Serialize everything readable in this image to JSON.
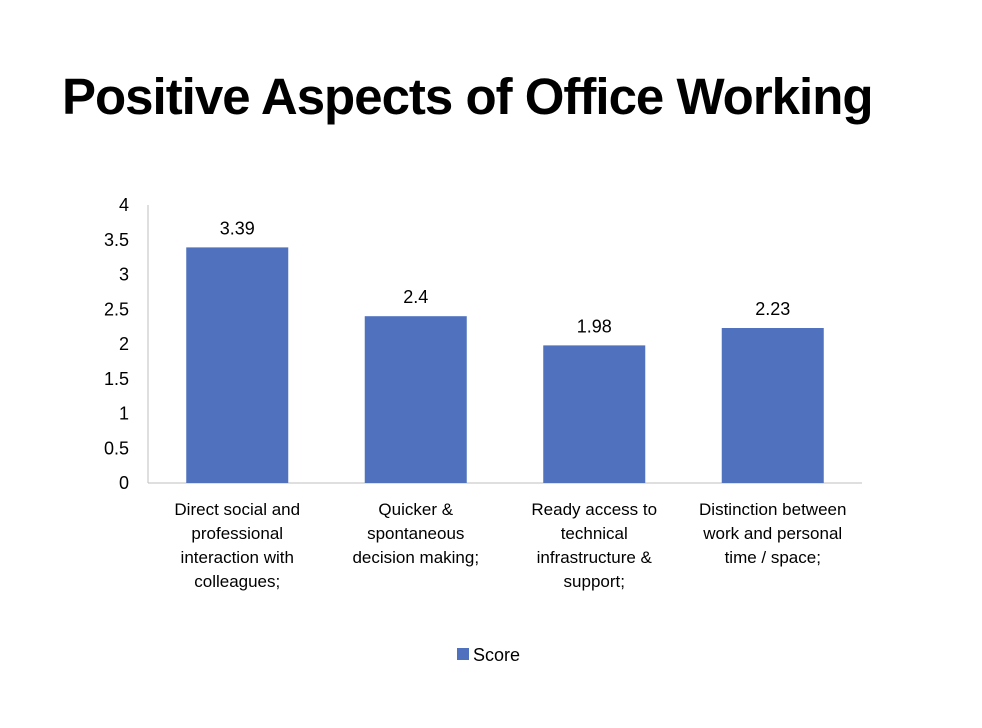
{
  "slide": {
    "title": "Positive Aspects of Office Working"
  },
  "chart_data": {
    "type": "bar",
    "title": "",
    "xlabel": "",
    "ylabel": "",
    "categories": [
      "Direct social and professional interaction with colleagues;",
      "Quicker & spontaneous decision making;",
      "Ready access to technical infrastructure & support;",
      "Distinction between work and personal time / space;"
    ],
    "category_label_lines": [
      [
        "Direct social and",
        "professional",
        "interaction with",
        "colleagues;"
      ],
      [
        "Quicker &",
        "spontaneous",
        "decision making;"
      ],
      [
        "Ready access to",
        "technical",
        "infrastructure &",
        "support;"
      ],
      [
        "Distinction between",
        "work and personal",
        "time / space;"
      ]
    ],
    "series": [
      {
        "name": "Score",
        "values": [
          3.39,
          2.4,
          1.98,
          2.23
        ],
        "data_labels": [
          "3.39",
          "2.4",
          "1.98",
          "2.23"
        ],
        "color": "#4F71BE"
      }
    ],
    "ylim": [
      0,
      4
    ],
    "y_ticks": [
      0,
      0.5,
      1,
      1.5,
      2,
      2.5,
      3,
      3.5,
      4
    ],
    "y_tick_labels": [
      "0",
      "0.5",
      "1",
      "1.5",
      "2",
      "2.5",
      "3",
      "3.5",
      "4"
    ],
    "grid": false,
    "legend": {
      "position": "bottom",
      "entries": [
        "Score"
      ]
    },
    "axis_color": "#BFBFBF"
  }
}
